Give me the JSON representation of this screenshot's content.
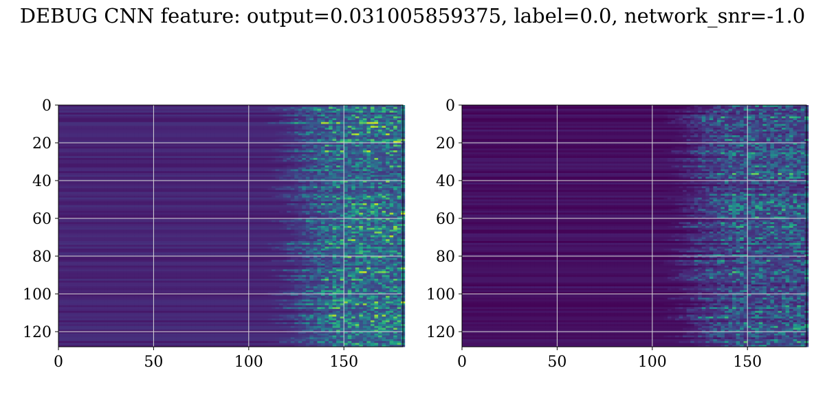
{
  "title": "DEBUG CNN feature: output=0.031005859375, label=0.0, network_snr=-1.0",
  "colors": {
    "colormap": "viridis",
    "viridis_stops": [
      "#440154",
      "#482878",
      "#3e4989",
      "#31688e",
      "#26828e",
      "#1f9e89",
      "#35b779",
      "#6ece58",
      "#b5de2b",
      "#fde725"
    ],
    "grid": "#d9d9d9"
  },
  "chart_data": [
    {
      "type": "heatmap",
      "title": "",
      "xlabel": "",
      "ylabel": "",
      "xlim": [
        0,
        181
      ],
      "ylim": [
        128,
        0
      ],
      "x_ticks": [
        "0",
        "50",
        "100",
        "150"
      ],
      "x_tick_values": [
        0,
        50,
        100,
        150
      ],
      "y_ticks": [
        "0",
        "20",
        "40",
        "60",
        "80",
        "100",
        "120"
      ],
      "y_tick_values": [
        0,
        20,
        40,
        60,
        80,
        100,
        120
      ],
      "grid": true,
      "n_rows": 128,
      "n_cols": 181,
      "value_range": [
        0,
        1
      ],
      "description_of_values": {
        "background_level": 0.1,
        "transition_column_start": 115,
        "transition_column_end": 145,
        "high_activity_columns": [
          145,
          181
        ],
        "peak_value": 0.9
      }
    },
    {
      "type": "heatmap",
      "title": "",
      "xlabel": "",
      "ylabel": "",
      "xlim": [
        0,
        181
      ],
      "ylim": [
        128,
        0
      ],
      "x_ticks": [
        "0",
        "50",
        "100",
        "150"
      ],
      "x_tick_values": [
        0,
        50,
        100,
        150
      ],
      "y_ticks": [
        "0",
        "20",
        "40",
        "60",
        "80",
        "100",
        "120"
      ],
      "y_tick_values": [
        0,
        20,
        40,
        60,
        80,
        100,
        120
      ],
      "grid": true,
      "n_rows": 128,
      "n_cols": 181,
      "value_range": [
        0,
        1
      ],
      "description_of_values": {
        "background_level": 0.04,
        "transition_column_start": 112,
        "transition_column_end": 140,
        "high_activity_columns": [
          140,
          181
        ],
        "peak_value": 0.75
      }
    }
  ]
}
